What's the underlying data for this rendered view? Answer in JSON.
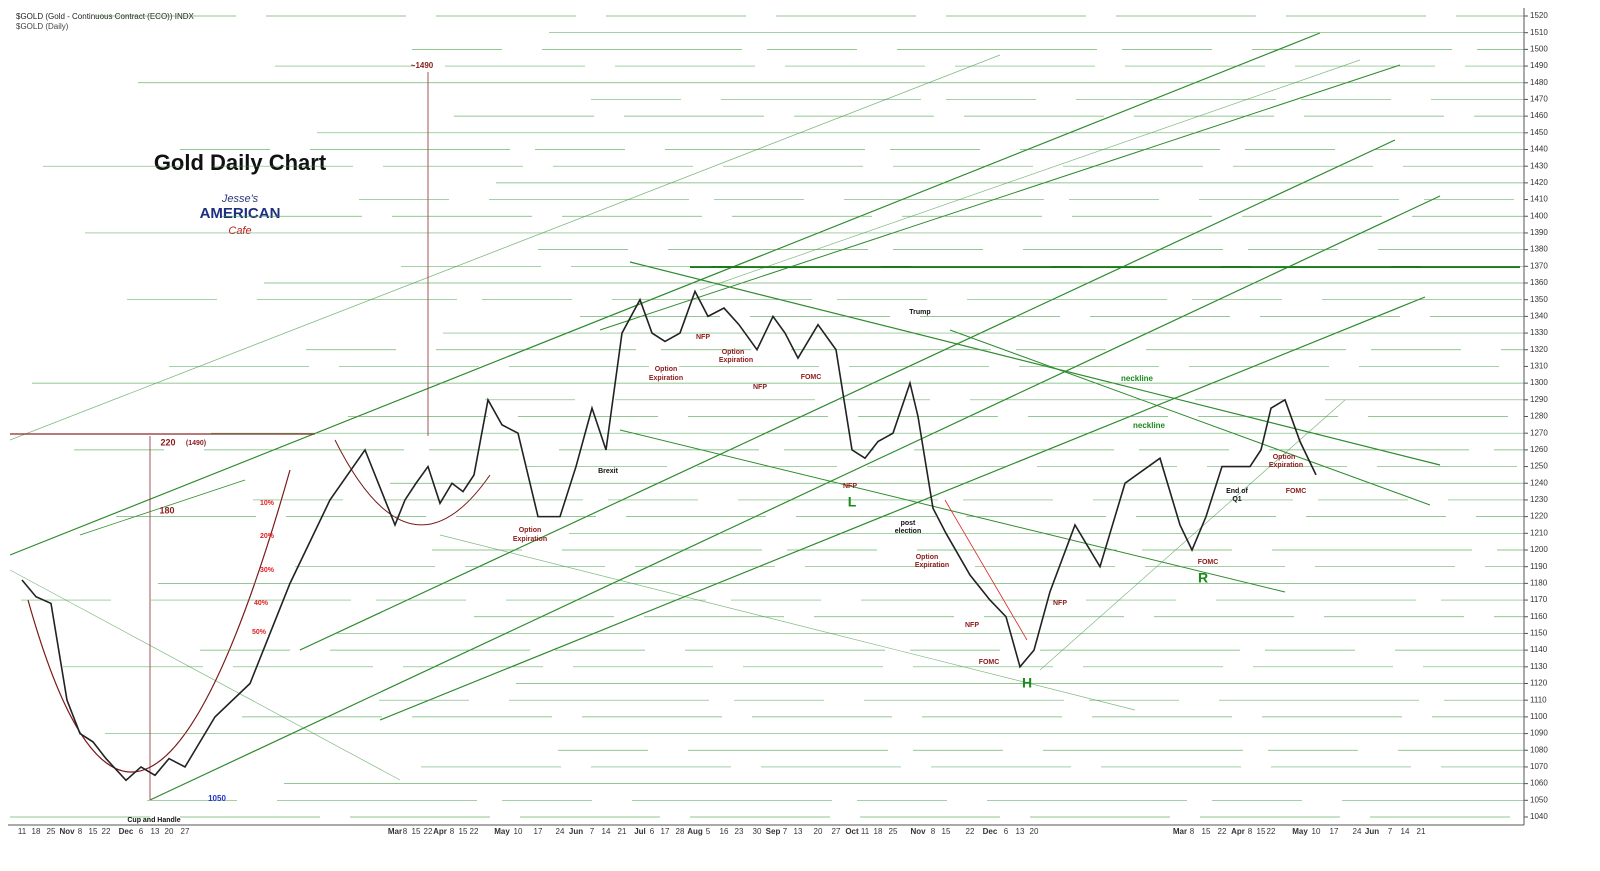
{
  "chart_data": {
    "type": "line",
    "title": "Gold Daily Chart",
    "symbol_header": "$GOLD (Gold - Continuous Contract (ECO)) INDX",
    "symbol_sub": "$GOLD (Daily)",
    "logo": [
      "Jesse's",
      "AMERICAN",
      "Cafe"
    ],
    "categories": [
      "11",
      "18",
      "25",
      "Nov",
      "8",
      "15",
      "22",
      "Dec",
      "6",
      "13",
      "20",
      "27",
      null,
      null,
      null,
      null,
      null,
      "Mar",
      "8",
      "15",
      "22",
      "Apr",
      "8",
      "15",
      "22",
      null,
      "May",
      "10",
      "17",
      "24",
      "Jun",
      "7",
      "14",
      "21",
      "Jul",
      "6",
      "17",
      "28",
      "Aug",
      "5",
      "16",
      "23",
      "30",
      "Sep",
      "7",
      "13",
      "20",
      "27",
      "Oct",
      "11",
      "18",
      "25",
      null,
      "Nov",
      "8",
      "15",
      "22",
      "Dec",
      "6",
      "13",
      "20",
      null,
      null,
      null,
      null,
      null,
      "Mar",
      "8",
      "15",
      "22",
      "Apr",
      "8",
      "15",
      "22",
      null,
      "May",
      "10",
      "17",
      "24",
      "Jun",
      "7",
      "14",
      "21"
    ],
    "series": [
      {
        "name": "$GOLD",
        "color": "#222222",
        "values": [
          1182,
          1172,
          1168,
          1110,
          1090,
          1085,
          1075,
          1062,
          1070,
          1065,
          1075,
          1070,
          1100,
          1120,
          1180,
          1230,
          1260,
          1215,
          1230,
          1240,
          1250,
          1228,
          1240,
          1235,
          1245,
          1290,
          1275,
          1270,
          1220,
          1220,
          1250,
          1285,
          1260,
          1330,
          1350,
          1330,
          1325,
          1330,
          1355,
          1340,
          1345,
          1335,
          1320,
          1340,
          1330,
          1315,
          1335,
          1320,
          1260,
          1255,
          1265,
          1270,
          1300,
          1280,
          1225,
          1210,
          1185,
          1170,
          1160,
          1130,
          1140,
          1175,
          1215,
          1190,
          1240,
          1255,
          1215,
          1200,
          1220,
          1250,
          1250,
          1250,
          1260,
          1285,
          1290,
          1265,
          1245,
          null,
          null,
          null,
          null,
          null,
          null
        ]
      }
    ],
    "ylim": [
      1040,
      1520
    ],
    "yticks": [
      1040,
      1050,
      1060,
      1070,
      1080,
      1090,
      1100,
      1110,
      1120,
      1130,
      1140,
      1150,
      1160,
      1170,
      1180,
      1190,
      1200,
      1210,
      1220,
      1230,
      1240,
      1250,
      1260,
      1270,
      1280,
      1290,
      1300,
      1310,
      1320,
      1330,
      1340,
      1350,
      1360,
      1370,
      1380,
      1390,
      1400,
      1410,
      1420,
      1430,
      1440,
      1450,
      1460,
      1470,
      1480,
      1490,
      1500,
      1510,
      1520
    ],
    "grid": true,
    "annotations": [
      "~1490",
      "220",
      "(1490)",
      "180",
      "10%",
      "20%",
      "30%",
      "40%",
      "50%",
      "1050",
      "Cup and Handle",
      "Brexit",
      "Option",
      "Expiration",
      "Option",
      "Expiration",
      "NFP",
      "Option",
      "Expiration",
      "NFP",
      "FOMC",
      "Trump",
      "NFP",
      "L",
      "post",
      "election",
      "Option",
      "Expiration",
      "NFP",
      "FOMC",
      "H",
      "NFP",
      "neckline",
      "neckline",
      "FOMC",
      "R",
      "End of",
      "Q1",
      "Option",
      "Expiration",
      "FOMC"
    ]
  }
}
